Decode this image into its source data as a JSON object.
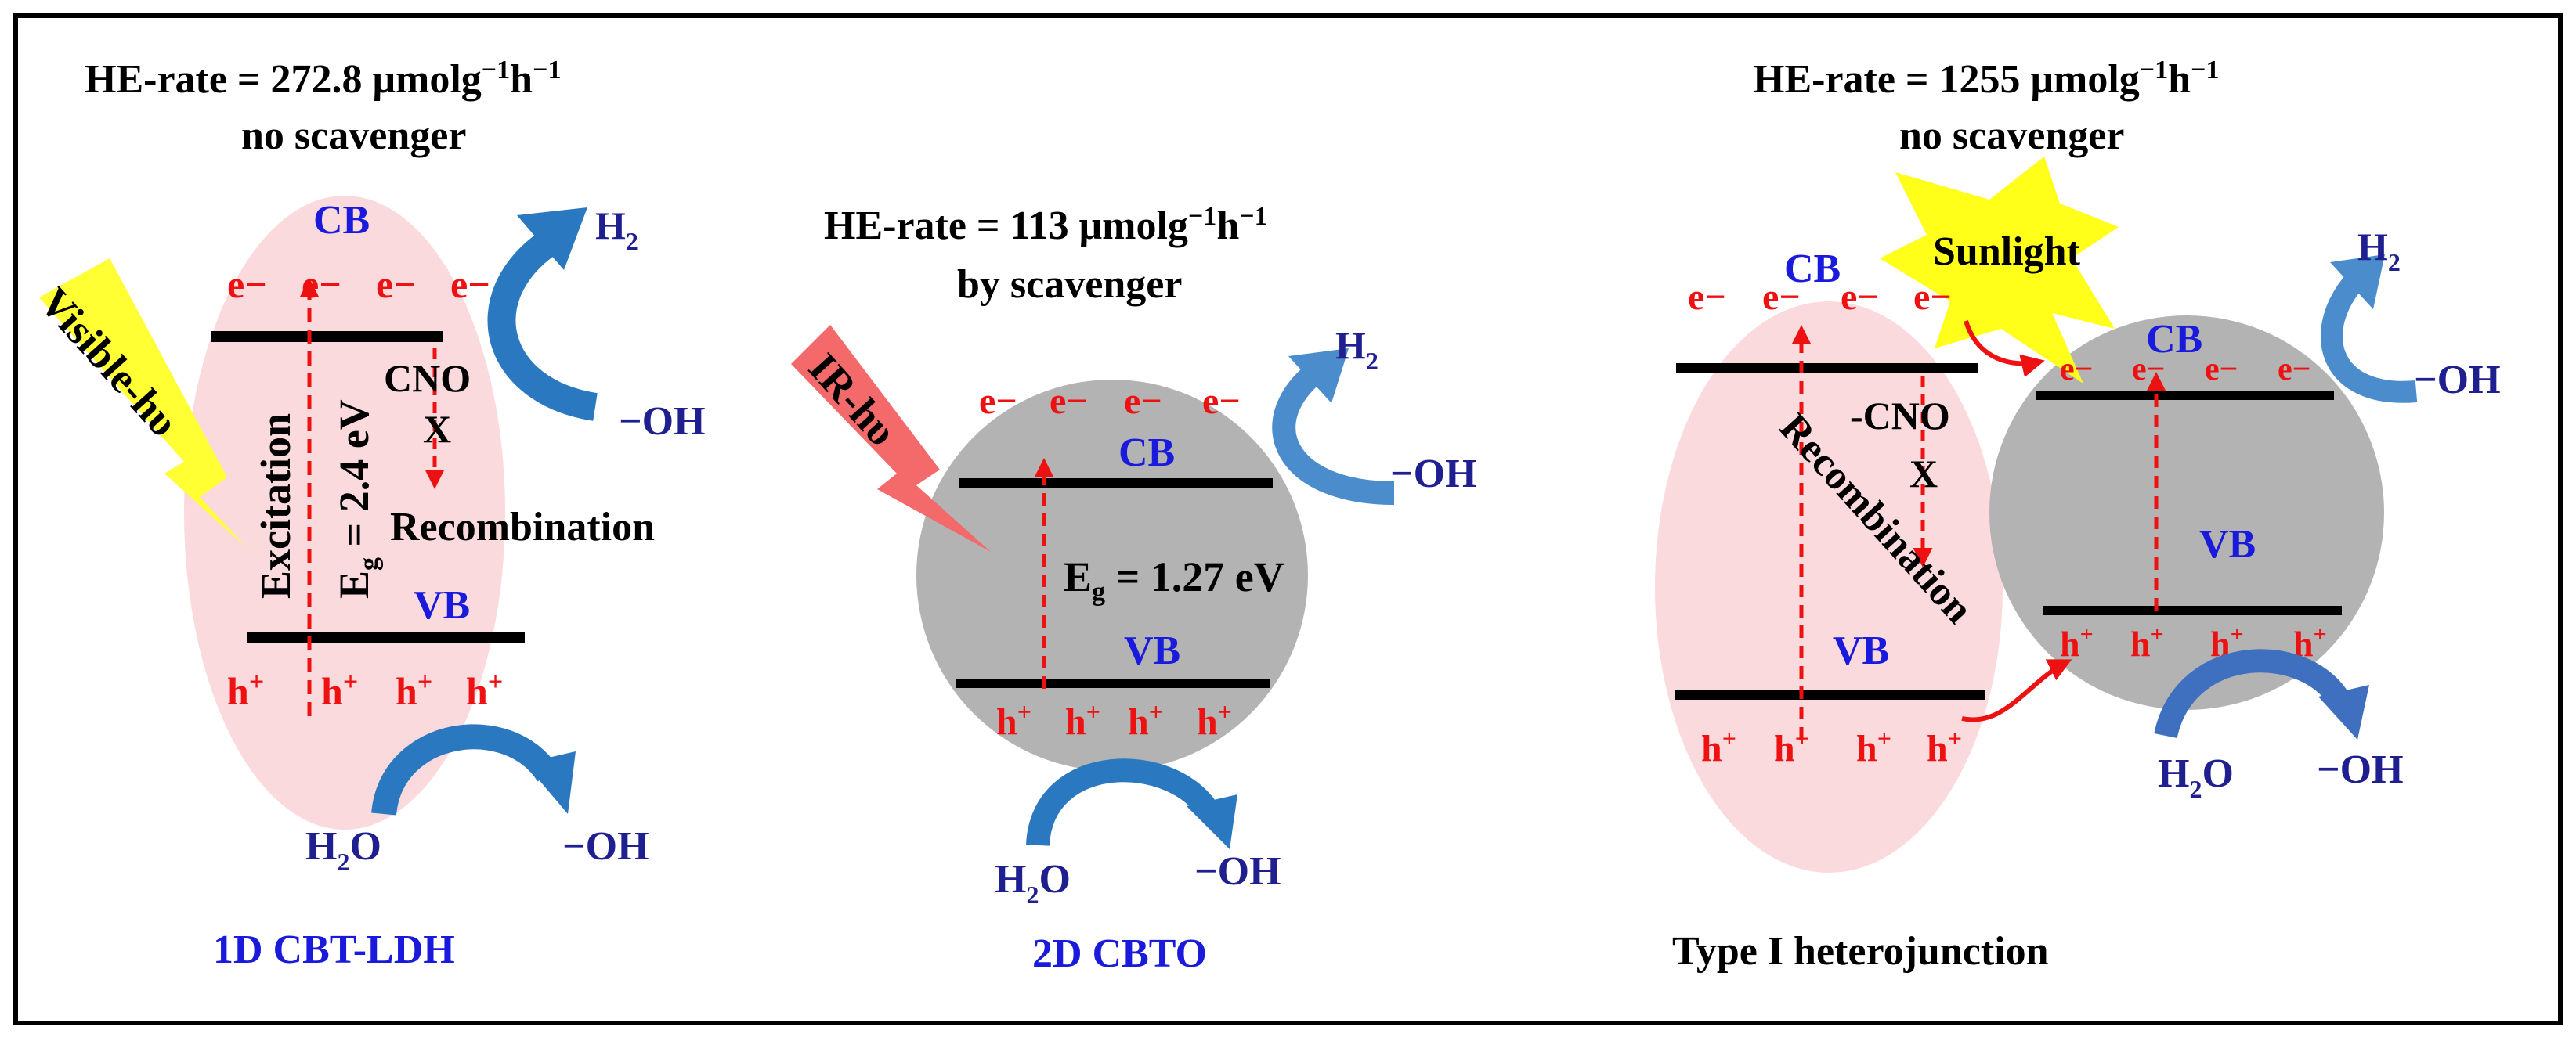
{
  "colors": {
    "ellipse_pink": "#fadadd",
    "circle_gray": "#b3b3b3",
    "electron_red": "#ee1111",
    "band_label_blue": "#1a1adc",
    "species_navy": "#1f1f8f",
    "arrow_blue": "#2a78c0",
    "visible_light_yellow": "#ffff33",
    "ir_light_red": "#f46a6a"
  },
  "sup": {
    "minus": "−",
    "plus": "+",
    "neg_one": "−1",
    "two": "2"
  },
  "panel1": {
    "rate_label": "HE-rate = 272.8 μmolg",
    "rate_unit_mid": "h",
    "condition": "no scavenger",
    "cb_label": "CB",
    "vb_label": "VB",
    "electron": "e",
    "hole": "h",
    "h2_label": "H",
    "oh_label": "OH",
    "h2o_h": "H",
    "h2o_o": "O",
    "light_label": "Visible-hυ",
    "excitation_label": "Excitation",
    "eg_letter": "E",
    "eg_sub": "g",
    "eg_value": " = 2.4 eV",
    "cno_label": "CNO",
    "x_label": "X",
    "recombination_label": "Recombination",
    "name": "1D CBT-LDH"
  },
  "panel2": {
    "rate_label": "HE-rate = 113 μmolg",
    "rate_unit_mid": "h",
    "condition": "by scavenger",
    "cb_label": "CB",
    "vb_label": "VB",
    "electron": "e",
    "hole": "h",
    "h2_label": "H",
    "oh_label": "OH",
    "h2o_h": "H",
    "h2o_o": "O",
    "light_label": "IR-hυ",
    "eg_letter": "E",
    "eg_sub": "g",
    "eg_value": " = 1.27 eV",
    "name": "2D CBTO"
  },
  "panel3": {
    "rate_label": "HE-rate = 1255 μmolg",
    "rate_unit_mid": "h",
    "condition": "no scavenger",
    "sunlight_label": "Sunlight",
    "cb_label_left": "CB",
    "vb_label_left": "VB",
    "cb_label_right": "CB",
    "vb_label_right": "VB",
    "electron": "e",
    "hole": "h",
    "cno_label": "-CNO",
    "x_label": "X",
    "recombination_label": "Recombination",
    "h2_label": "H",
    "oh_label": "OH",
    "h2o_h": "H",
    "h2o_o": "O",
    "name": "Type I heterojunction"
  }
}
